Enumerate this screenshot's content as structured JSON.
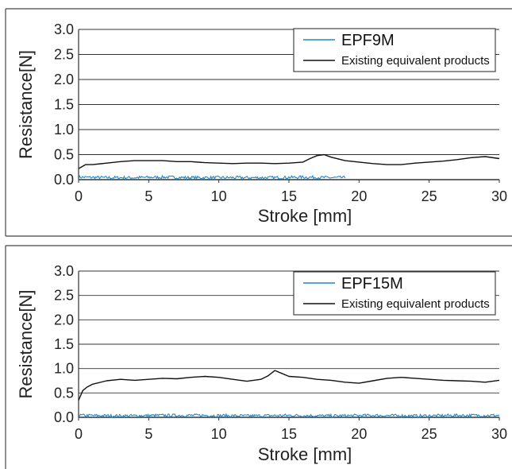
{
  "chart_data": [
    {
      "type": "line",
      "xlabel": "Stroke [mm]",
      "ylabel": "Resistance[N]",
      "xlim": [
        0,
        30
      ],
      "ylim": [
        0,
        3.0
      ],
      "xticks": [
        "0",
        "5",
        "10",
        "15",
        "20",
        "25",
        "30"
      ],
      "yticks": [
        "0.0",
        "0.5",
        "1.0",
        "1.5",
        "2.0",
        "2.5",
        "3.0"
      ],
      "grid": "horizontal",
      "legend_position": "top-right",
      "series": [
        {
          "name": "EPF9M",
          "color": "#1e88c8",
          "x": [
            0,
            2,
            4,
            6,
            8,
            10,
            12,
            14,
            16,
            18,
            19
          ],
          "y": [
            0.05,
            0.04,
            0.04,
            0.05,
            0.04,
            0.04,
            0.04,
            0.04,
            0.05,
            0.04,
            0.04
          ]
        },
        {
          "name": "Existing equivalent products",
          "color": "#111111",
          "x": [
            0,
            0.5,
            1,
            2,
            3,
            4,
            5,
            6,
            7,
            8,
            9,
            10,
            11,
            12,
            13,
            14,
            15,
            16,
            16.5,
            17,
            17.5,
            18,
            19,
            20,
            21,
            22,
            23,
            24,
            25,
            26,
            27,
            28,
            29,
            30
          ],
          "y": [
            0.22,
            0.3,
            0.3,
            0.33,
            0.36,
            0.38,
            0.38,
            0.38,
            0.36,
            0.36,
            0.34,
            0.33,
            0.32,
            0.33,
            0.33,
            0.32,
            0.33,
            0.35,
            0.42,
            0.48,
            0.5,
            0.45,
            0.38,
            0.35,
            0.32,
            0.3,
            0.3,
            0.33,
            0.35,
            0.37,
            0.4,
            0.44,
            0.46,
            0.42
          ]
        }
      ]
    },
    {
      "type": "line",
      "xlabel": "Stroke [mm]",
      "ylabel": "Resistance[N]",
      "xlim": [
        0,
        30
      ],
      "ylim": [
        0,
        3.0
      ],
      "xticks": [
        "0",
        "5",
        "10",
        "15",
        "20",
        "25",
        "30"
      ],
      "yticks": [
        "0.0",
        "0.5",
        "1.0",
        "1.5",
        "2.0",
        "2.5",
        "3.0"
      ],
      "grid": "horizontal",
      "legend_position": "top-right",
      "series": [
        {
          "name": "EPF15M",
          "color": "#1e88c8",
          "x": [
            0,
            3,
            6,
            9,
            12,
            15,
            18,
            21,
            24,
            27,
            30
          ],
          "y": [
            0.04,
            0.03,
            0.04,
            0.04,
            0.03,
            0.04,
            0.03,
            0.04,
            0.03,
            0.04,
            0.04
          ]
        },
        {
          "name": "Existing equivalent products",
          "color": "#111111",
          "x": [
            0,
            0.3,
            0.6,
            1,
            2,
            3,
            4,
            5,
            6,
            7,
            8,
            9,
            10,
            11,
            12,
            13,
            13.5,
            14,
            14.5,
            15,
            16,
            17,
            18,
            19,
            20,
            21,
            22,
            23,
            24,
            25,
            26,
            27,
            28,
            29,
            30
          ],
          "y": [
            0.35,
            0.55,
            0.62,
            0.68,
            0.75,
            0.78,
            0.76,
            0.78,
            0.8,
            0.79,
            0.82,
            0.84,
            0.82,
            0.78,
            0.74,
            0.78,
            0.85,
            0.96,
            0.9,
            0.84,
            0.82,
            0.78,
            0.76,
            0.72,
            0.7,
            0.75,
            0.8,
            0.82,
            0.8,
            0.78,
            0.76,
            0.75,
            0.74,
            0.72,
            0.76
          ]
        }
      ]
    }
  ]
}
